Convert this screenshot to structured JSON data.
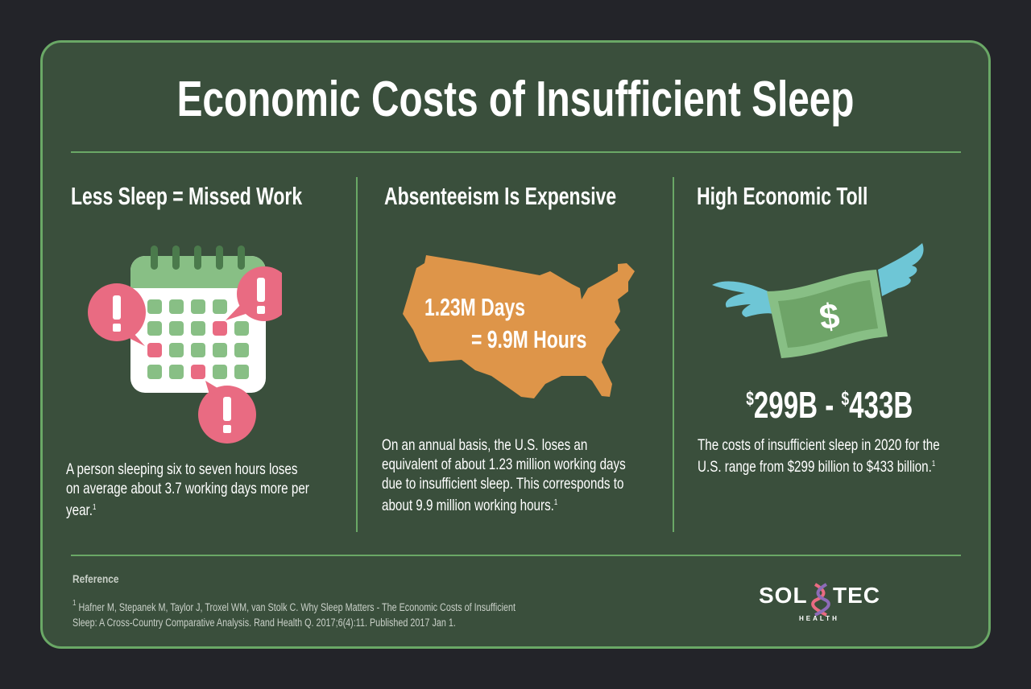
{
  "title": "Economic Costs of Insufficient Sleep",
  "colors": {
    "background": "#232429",
    "card": "#3a4f3c",
    "accent_border": "#6aa866",
    "alert_pink": "#e96b82",
    "calendar_green": "#88bf85",
    "map_orange": "#de9549",
    "wing_blue": "#6ec6d6",
    "bill_green": "#6ea468"
  },
  "columns": [
    {
      "heading": "Less Sleep = Missed Work",
      "icon": "calendar-alert-icon",
      "body_lines": [
        "A person sleeping six to seven hours loses",
        "on average about 3.7 working days more per",
        "year."
      ],
      "footnote": "1"
    },
    {
      "heading": "Absenteeism Is Expensive",
      "icon": "us-map-icon",
      "map_label_line1": "1.23M Days",
      "map_label_line2": "= 9.9M Hours",
      "body_lines": [
        "On an annual basis, the U.S. loses an",
        "equivalent of about 1.23 million working days",
        "due to insufficient sleep. This corresponds to",
        "about 9.9 million working hours."
      ],
      "footnote": "1"
    },
    {
      "heading": "High Economic Toll",
      "icon": "flying-money-icon",
      "range_symbol": "$",
      "range_low": "299B",
      "range_sep": " - ",
      "range_high": "433B",
      "body_lines": [
        "The costs of insufficient sleep in 2020 for the",
        "U.S. range from $299 billion to $433 billion."
      ],
      "footnote": "1"
    }
  ],
  "reference": {
    "heading": "Reference",
    "marker": "1",
    "lines": [
      "Hafner M, Stepanek M, Taylor J, Troxel WM, van Stolk C. Why Sleep Matters - The Economic Costs of Insufficient",
      "Sleep: A Cross-Country Comparative Analysis. Rand Health Q. 2017;6(4):11. Published 2017 Jan 1."
    ]
  },
  "logo": {
    "left": "SOL",
    "right": "TEC",
    "sub": "HEALTH"
  }
}
